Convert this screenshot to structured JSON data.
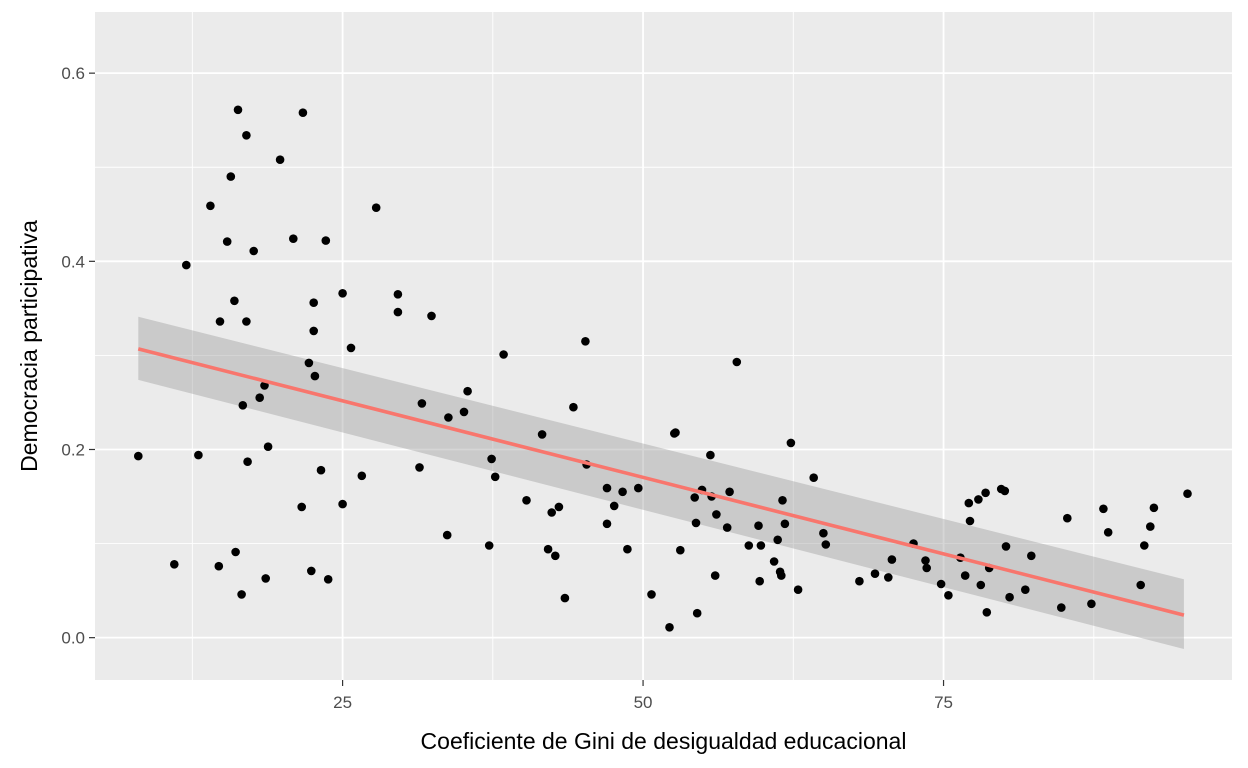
{
  "chart_data": {
    "type": "scatter",
    "xlabel": "Coeficiente de Gini de desigualdad educacional",
    "ylabel": "Democracia participativa",
    "xlim": [
      4.4,
      99.0
    ],
    "ylim": [
      -0.045,
      0.665
    ],
    "x_ticks": [
      25,
      50,
      75
    ],
    "x_minor_ticks": [
      12.5,
      37.5,
      62.5,
      87.5
    ],
    "y_ticks": [
      0.0,
      0.2,
      0.4,
      0.6
    ],
    "y_minor_ticks": [
      0.1,
      0.3,
      0.5
    ],
    "x_tick_labels": [
      "25",
      "50",
      "75"
    ],
    "y_tick_labels": [
      "0.0",
      "0.2",
      "0.4",
      "0.6"
    ],
    "grid": true,
    "colors": {
      "panel": "#ebebeb",
      "grid": "#ffffff",
      "points": "#000000",
      "fit_line": "#f8766d",
      "confidence_band": "#999999"
    },
    "fit": {
      "method": "linear",
      "x": [
        8.0,
        95.0
      ],
      "y": [
        0.307,
        0.024
      ],
      "ci_lower": [
        0.274,
        -0.012
      ],
      "ci_upper": [
        0.341,
        0.062
      ]
    },
    "points": [
      [
        8.0,
        0.193
      ],
      [
        11.0,
        0.078
      ],
      [
        12.0,
        0.396
      ],
      [
        13.0,
        0.194
      ],
      [
        14.0,
        0.459
      ],
      [
        14.7,
        0.076
      ],
      [
        14.8,
        0.336
      ],
      [
        15.4,
        0.421
      ],
      [
        15.7,
        0.49
      ],
      [
        16.0,
        0.358
      ],
      [
        16.1,
        0.091
      ],
      [
        16.3,
        0.561
      ],
      [
        16.6,
        0.046
      ],
      [
        16.7,
        0.247
      ],
      [
        17.0,
        0.534
      ],
      [
        17.0,
        0.336
      ],
      [
        17.1,
        0.187
      ],
      [
        17.6,
        0.411
      ],
      [
        18.1,
        0.255
      ],
      [
        18.5,
        0.268
      ],
      [
        18.6,
        0.063
      ],
      [
        18.8,
        0.203
      ],
      [
        19.8,
        0.508
      ],
      [
        20.9,
        0.424
      ],
      [
        21.6,
        0.139
      ],
      [
        21.7,
        0.558
      ],
      [
        22.2,
        0.292
      ],
      [
        22.4,
        0.071
      ],
      [
        22.6,
        0.356
      ],
      [
        22.6,
        0.326
      ],
      [
        22.7,
        0.278
      ],
      [
        23.2,
        0.178
      ],
      [
        23.6,
        0.422
      ],
      [
        23.8,
        0.062
      ],
      [
        25.0,
        0.142
      ],
      [
        25.0,
        0.366
      ],
      [
        25.7,
        0.308
      ],
      [
        26.6,
        0.172
      ],
      [
        27.8,
        0.457
      ],
      [
        29.6,
        0.365
      ],
      [
        29.6,
        0.346
      ],
      [
        31.4,
        0.181
      ],
      [
        31.6,
        0.249
      ],
      [
        32.4,
        0.342
      ],
      [
        33.7,
        0.109
      ],
      [
        33.8,
        0.234
      ],
      [
        35.1,
        0.24
      ],
      [
        35.4,
        0.262
      ],
      [
        37.2,
        0.098
      ],
      [
        37.4,
        0.19
      ],
      [
        37.7,
        0.171
      ],
      [
        38.4,
        0.301
      ],
      [
        40.3,
        0.146
      ],
      [
        41.6,
        0.216
      ],
      [
        42.1,
        0.094
      ],
      [
        42.4,
        0.133
      ],
      [
        42.7,
        0.087
      ],
      [
        43.0,
        0.139
      ],
      [
        43.5,
        0.042
      ],
      [
        44.2,
        0.245
      ],
      [
        45.2,
        0.315
      ],
      [
        45.3,
        0.184
      ],
      [
        47.0,
        0.121
      ],
      [
        47.0,
        0.159
      ],
      [
        47.6,
        0.14
      ],
      [
        48.3,
        0.155
      ],
      [
        48.7,
        0.094
      ],
      [
        49.6,
        0.159
      ],
      [
        50.7,
        0.046
      ],
      [
        52.2,
        0.011
      ],
      [
        52.6,
        0.217
      ],
      [
        52.7,
        0.218
      ],
      [
        53.1,
        0.093
      ],
      [
        54.3,
        0.149
      ],
      [
        54.4,
        0.122
      ],
      [
        54.5,
        0.026
      ],
      [
        54.9,
        0.157
      ],
      [
        55.6,
        0.194
      ],
      [
        55.7,
        0.15
      ],
      [
        56.0,
        0.066
      ],
      [
        56.1,
        0.131
      ],
      [
        57.0,
        0.117
      ],
      [
        57.2,
        0.155
      ],
      [
        57.8,
        0.293
      ],
      [
        58.8,
        0.098
      ],
      [
        59.6,
        0.119
      ],
      [
        59.7,
        0.06
      ],
      [
        59.8,
        0.098
      ],
      [
        60.9,
        0.081
      ],
      [
        61.2,
        0.104
      ],
      [
        61.4,
        0.07
      ],
      [
        61.5,
        0.066
      ],
      [
        61.6,
        0.146
      ],
      [
        61.8,
        0.121
      ],
      [
        62.3,
        0.207
      ],
      [
        62.9,
        0.051
      ],
      [
        64.2,
        0.17
      ],
      [
        65.0,
        0.111
      ],
      [
        65.2,
        0.099
      ],
      [
        68.0,
        0.06
      ],
      [
        69.3,
        0.068
      ],
      [
        70.4,
        0.064
      ],
      [
        70.7,
        0.083
      ],
      [
        72.5,
        0.1
      ],
      [
        73.5,
        0.082
      ],
      [
        73.6,
        0.074
      ],
      [
        74.8,
        0.057
      ],
      [
        75.4,
        0.045
      ],
      [
        76.4,
        0.085
      ],
      [
        76.8,
        0.066
      ],
      [
        77.1,
        0.143
      ],
      [
        77.2,
        0.124
      ],
      [
        77.9,
        0.147
      ],
      [
        78.1,
        0.056
      ],
      [
        78.5,
        0.154
      ],
      [
        78.6,
        0.027
      ],
      [
        78.8,
        0.074
      ],
      [
        79.8,
        0.158
      ],
      [
        80.1,
        0.156
      ],
      [
        80.2,
        0.097
      ],
      [
        80.5,
        0.043
      ],
      [
        81.8,
        0.051
      ],
      [
        82.3,
        0.087
      ],
      [
        84.8,
        0.032
      ],
      [
        85.3,
        0.127
      ],
      [
        87.3,
        0.036
      ],
      [
        88.3,
        0.137
      ],
      [
        88.7,
        0.112
      ],
      [
        91.4,
        0.056
      ],
      [
        91.7,
        0.098
      ],
      [
        92.2,
        0.118
      ],
      [
        92.5,
        0.138
      ],
      [
        95.3,
        0.153
      ]
    ]
  }
}
